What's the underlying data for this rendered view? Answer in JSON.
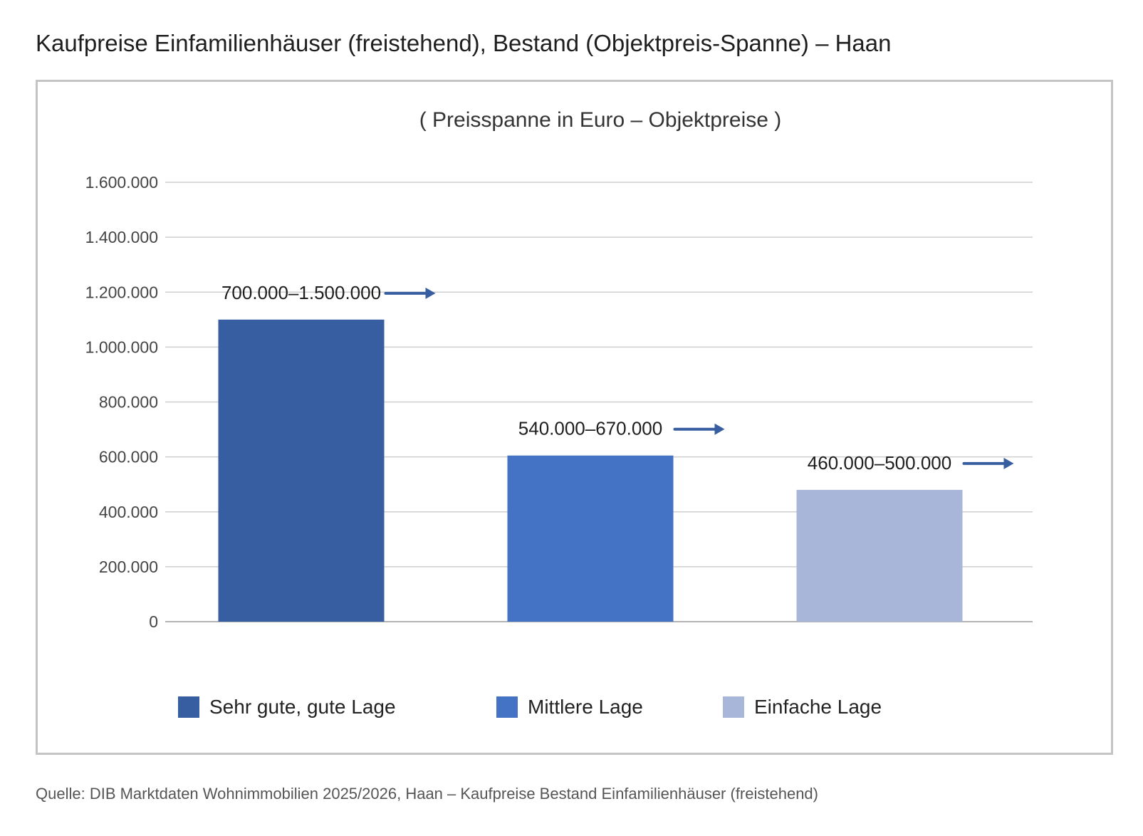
{
  "title": "Kaufpreise Einfamilienhäuser (freistehend), Bestand (Objektpreis-Spanne) – Haan",
  "source": "Quelle: DIB Marktdaten Wohnimmobilien 2025/2026, Haan – Kaufpreise Bestand Einfamilienhäuser (freistehend)",
  "colors": {
    "series_1": "#375ea1",
    "series_2": "#4472c4",
    "series_3": "#a8b6da",
    "arrow": "#375ea1",
    "grid": "#cfcfcf",
    "axis": "#b3b3b3"
  },
  "legend": {
    "items": [
      {
        "label": "Sehr gute, gute Lage",
        "color": "#375ea1"
      },
      {
        "label": "Mittlere Lage",
        "color": "#4472c4"
      },
      {
        "label": "Einfache Lage",
        "color": "#a8b6da"
      }
    ]
  },
  "chart_data": {
    "type": "bar",
    "title": "( Preisspanne in Euro – Objektpreise )",
    "xlabel": "",
    "ylabel": "",
    "categories": [
      "Sehr gute, gute Lage",
      "Mittlere Lage",
      "Einfache Lage"
    ],
    "values": [
      1100000,
      605000,
      480000
    ],
    "data_labels": [
      "700.000–1.500.000",
      "540.000–670.000",
      "460.000–500.000"
    ],
    "ylim": [
      0,
      1600000
    ],
    "yticks": [
      0,
      200000,
      400000,
      600000,
      800000,
      1000000,
      1200000,
      1400000,
      1600000
    ],
    "ytick_labels": [
      "0",
      "200.000",
      "400.000",
      "600.000",
      "800.000",
      "1.000.000",
      "1.200.000",
      "1.400.000",
      "1.600.000"
    ],
    "grid": true,
    "legend_position": "bottom",
    "label_arrows": true
  }
}
